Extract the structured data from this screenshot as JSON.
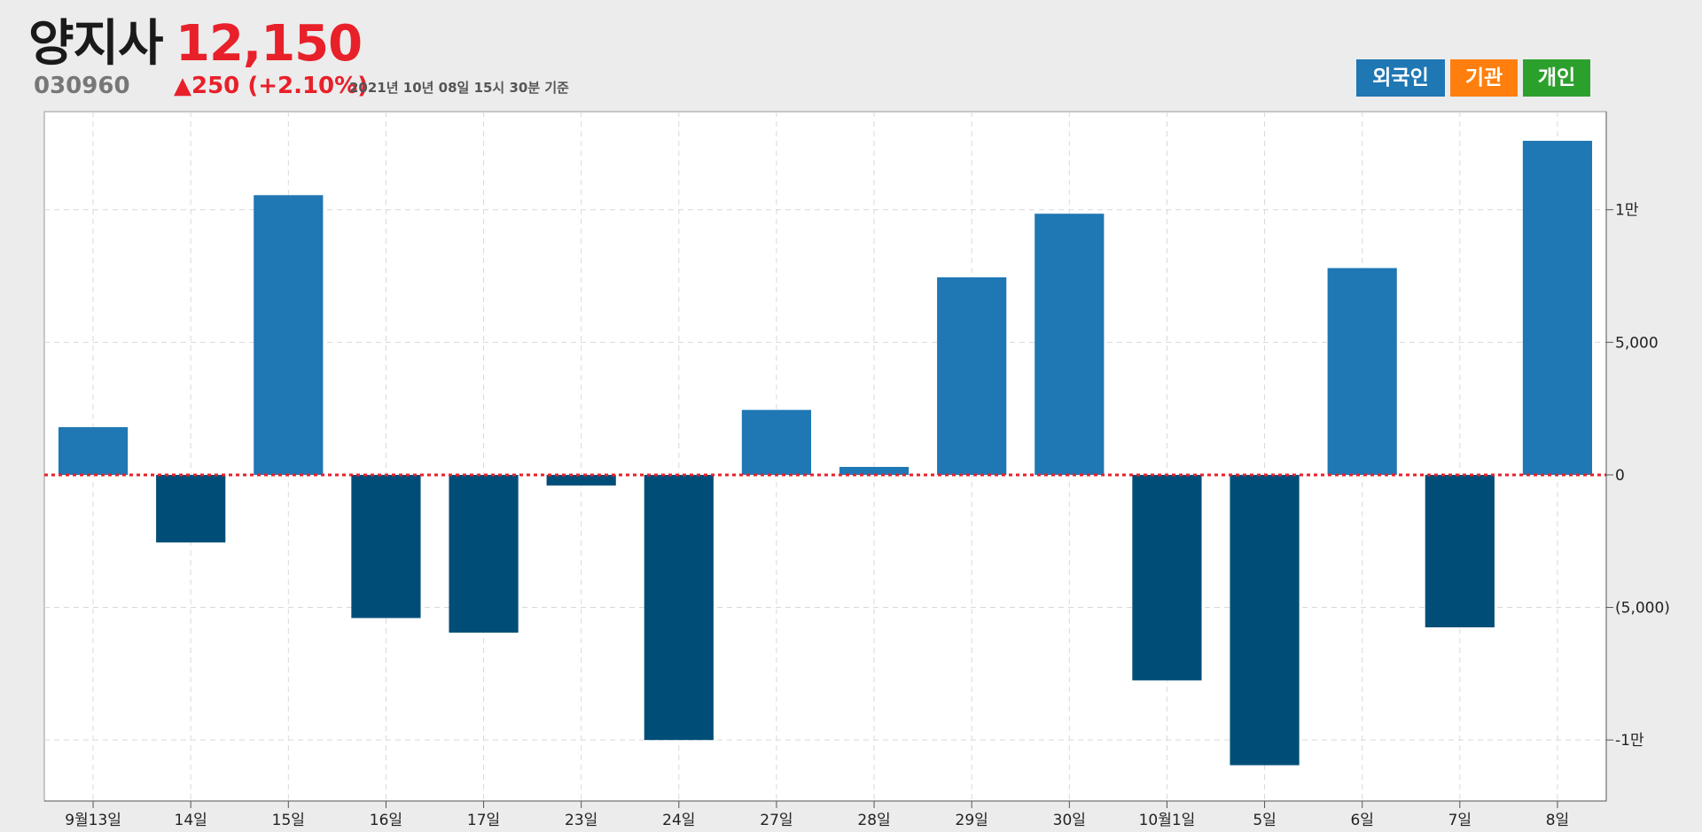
{
  "header": {
    "name": "양지사",
    "price": "12,150",
    "code": "030960",
    "change": "▲250 (+2.10%)",
    "timestamp": "2021년 10년 08일 15시 30분 기준"
  },
  "legend": [
    {
      "label": "외국인",
      "color": "#1f77b4"
    },
    {
      "label": "기관",
      "color": "#ff7f0e"
    },
    {
      "label": "개인",
      "color": "#2ca02c"
    }
  ],
  "colors": {
    "positive": "#1f77b4",
    "negative": "#004e78",
    "price_up": "#e8202a",
    "zero_line": "#e8202a"
  },
  "chart_data": {
    "type": "bar",
    "series_name": "외국인",
    "categories": [
      "9월13일",
      "14일",
      "15일",
      "16일",
      "17일",
      "23일",
      "24일",
      "27일",
      "28일",
      "29일",
      "30일",
      "10월1일",
      "5일",
      "6일",
      "7일",
      "8일"
    ],
    "values": [
      1800,
      -2550,
      10550,
      -5400,
      -5950,
      -400,
      -10000,
      2450,
      300,
      7450,
      9850,
      -7750,
      -10950,
      7800,
      -5750,
      12600
    ],
    "ylim": [
      -12300,
      13700
    ],
    "yticks": [
      -10000,
      -5000,
      0,
      5000,
      10000
    ],
    "ytick_labels": [
      "-1만",
      "(5,000)",
      "0",
      "5,000",
      "1만"
    ],
    "y_axis_side": "right",
    "grid": true
  }
}
